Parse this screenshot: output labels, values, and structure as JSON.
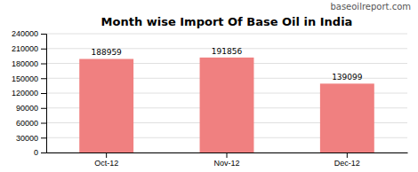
{
  "chart_data": {
    "type": "bar",
    "title": "Month wise Import Of Base Oil in India",
    "annotations": [
      "baseoilreport.com"
    ],
    "categories": [
      "Oct-12",
      "Nov-12",
      "Dec-12"
    ],
    "values": [
      188959,
      191856,
      139099
    ],
    "color": "#F08080",
    "ylim": [
      0,
      240000
    ],
    "yticks": [
      0,
      30000,
      60000,
      90000,
      120000,
      150000,
      180000,
      210000,
      240000
    ],
    "grid": true,
    "data_labels": true
  }
}
